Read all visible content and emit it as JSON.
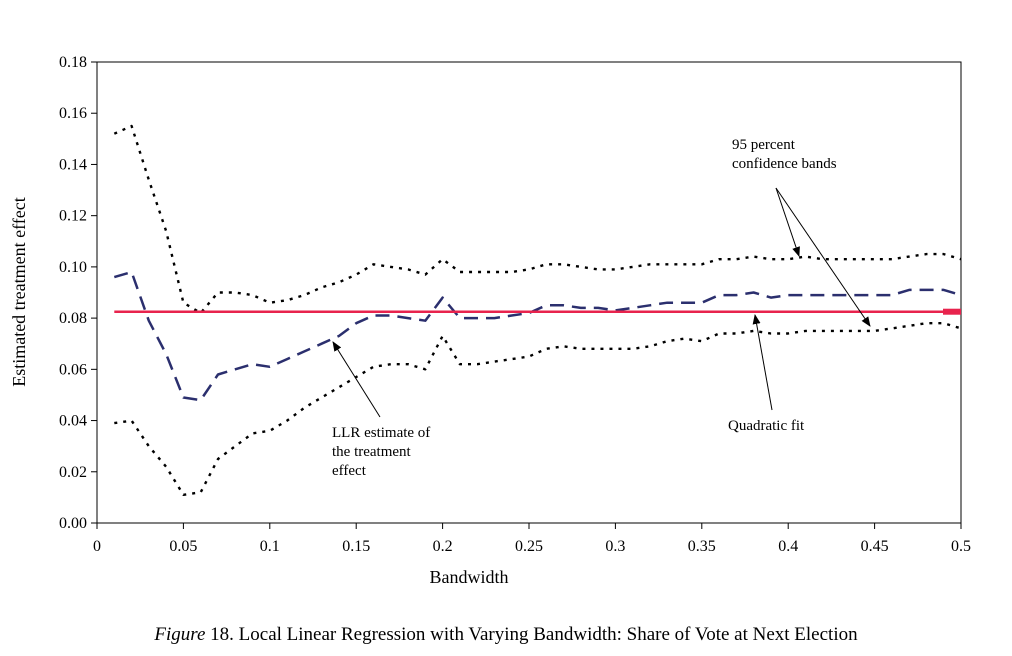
{
  "chart_data": {
    "type": "line",
    "xlabel": "Bandwidth",
    "ylabel": "Estimated treatment effect",
    "xlim": [
      0,
      0.5
    ],
    "ylim": [
      0,
      0.18
    ],
    "x_ticks": [
      "0",
      "0.05",
      "0.1",
      "0.15",
      "0.2",
      "0.25",
      "0.3",
      "0.35",
      "0.4",
      "0.45",
      "0.5"
    ],
    "y_ticks": [
      "0.00",
      "0.02",
      "0.04",
      "0.06",
      "0.08",
      "0.10",
      "0.12",
      "0.14",
      "0.16",
      "0.18"
    ],
    "grid": false,
    "x": [
      0.01,
      0.02,
      0.03,
      0.04,
      0.05,
      0.06,
      0.07,
      0.08,
      0.09,
      0.1,
      0.11,
      0.12,
      0.13,
      0.14,
      0.15,
      0.16,
      0.17,
      0.18,
      0.19,
      0.2,
      0.21,
      0.22,
      0.23,
      0.24,
      0.25,
      0.26,
      0.27,
      0.28,
      0.29,
      0.3,
      0.31,
      0.32,
      0.33,
      0.34,
      0.35,
      0.36,
      0.37,
      0.38,
      0.39,
      0.4,
      0.41,
      0.42,
      0.43,
      0.44,
      0.45,
      0.46,
      0.47,
      0.48,
      0.49,
      0.5
    ],
    "series": [
      {
        "style": "dashed",
        "color": "#2b2f6e",
        "values": [
          0.096,
          0.098,
          0.079,
          0.066,
          0.049,
          0.048,
          0.058,
          0.06,
          0.062,
          0.061,
          0.064,
          0.067,
          0.07,
          0.073,
          0.078,
          0.081,
          0.081,
          0.08,
          0.079,
          0.088,
          0.08,
          0.08,
          0.08,
          0.081,
          0.082,
          0.085,
          0.085,
          0.084,
          0.084,
          0.083,
          0.084,
          0.085,
          0.086,
          0.086,
          0.086,
          0.089,
          0.089,
          0.09,
          0.088,
          0.089,
          0.089,
          0.089,
          0.089,
          0.089,
          0.089,
          0.089,
          0.091,
          0.091,
          0.091,
          0.089
        ]
      },
      {
        "style": "dotted",
        "color": "#000000",
        "values": [
          0.152,
          0.155,
          0.134,
          0.114,
          0.086,
          0.082,
          0.09,
          0.09,
          0.089,
          0.086,
          0.087,
          0.089,
          0.092,
          0.094,
          0.097,
          0.101,
          0.1,
          0.099,
          0.097,
          0.103,
          0.098,
          0.098,
          0.098,
          0.098,
          0.099,
          0.101,
          0.101,
          0.1,
          0.099,
          0.099,
          0.1,
          0.101,
          0.101,
          0.101,
          0.101,
          0.103,
          0.103,
          0.104,
          0.103,
          0.103,
          0.104,
          0.103,
          0.103,
          0.103,
          0.103,
          0.103,
          0.104,
          0.105,
          0.105,
          0.103
        ]
      },
      {
        "style": "dotted",
        "color": "#000000",
        "values": [
          0.039,
          0.04,
          0.03,
          0.022,
          0.011,
          0.012,
          0.025,
          0.03,
          0.035,
          0.036,
          0.04,
          0.045,
          0.049,
          0.053,
          0.057,
          0.061,
          0.062,
          0.062,
          0.06,
          0.073,
          0.062,
          0.062,
          0.063,
          0.064,
          0.065,
          0.068,
          0.069,
          0.068,
          0.068,
          0.068,
          0.068,
          0.069,
          0.071,
          0.072,
          0.071,
          0.074,
          0.074,
          0.075,
          0.074,
          0.074,
          0.075,
          0.075,
          0.075,
          0.075,
          0.075,
          0.076,
          0.077,
          0.078,
          0.078,
          0.076
        ]
      },
      {
        "style": "solid",
        "color": "#e8234d",
        "values": [
          0.0825,
          0.0825,
          0.0825,
          0.0825,
          0.0825,
          0.0825,
          0.0825,
          0.0825,
          0.0825,
          0.0825,
          0.0825,
          0.0825,
          0.0825,
          0.0825,
          0.0825,
          0.0825,
          0.0825,
          0.0825,
          0.0825,
          0.0825,
          0.0825,
          0.0825,
          0.0825,
          0.0825,
          0.0825,
          0.0825,
          0.0825,
          0.0825,
          0.0825,
          0.0825,
          0.0825,
          0.0825,
          0.0825,
          0.0825,
          0.0825,
          0.0825,
          0.0825,
          0.0825,
          0.0825,
          0.0825,
          0.0825,
          0.0825,
          0.0825,
          0.0825,
          0.0825,
          0.0825,
          0.0825,
          0.0825,
          0.0825,
          0.0825
        ]
      }
    ],
    "annotations": {
      "ci_line1": "95 percent",
      "ci_line2": "confidence bands",
      "llr_line1": "LLR estimate of",
      "llr_line2": "the treatment",
      "llr_line3": "effect",
      "quad": "Quadratic fit"
    }
  },
  "caption": {
    "figure_label": "Figure",
    "text": " 18. Local Linear Regression with Varying Bandwidth: Share of Vote at Next Election"
  }
}
